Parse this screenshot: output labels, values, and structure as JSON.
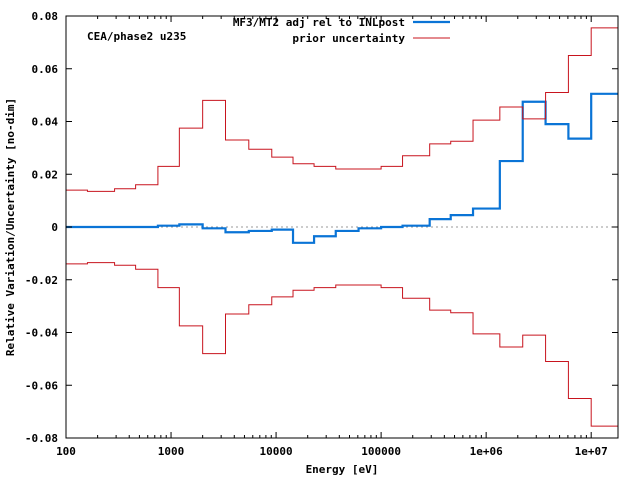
{
  "chart_data": {
    "type": "line",
    "step": true,
    "x_scale": "log",
    "xlim": [
      100,
      18000000
    ],
    "ylim": [
      -0.08,
      0.08
    ],
    "xlabel": "Energy [eV]",
    "ylabel": "Relative Variation/Uncertainty [no-dim]",
    "annotation": "CEA/phase2 u235",
    "legend_position": "top-right",
    "x_ticks": [
      {
        "value": 100,
        "label": "100"
      },
      {
        "value": 1000,
        "label": "1000"
      },
      {
        "value": 10000,
        "label": "10000"
      },
      {
        "value": 100000,
        "label": "100000"
      },
      {
        "value": 1000000,
        "label": "1e+06"
      },
      {
        "value": 10000000,
        "label": "1e+07"
      }
    ],
    "y_ticks": [
      {
        "value": 0.08,
        "label": "0.08"
      },
      {
        "value": 0.06,
        "label": "0.06"
      },
      {
        "value": 0.04,
        "label": "0.04"
      },
      {
        "value": 0.02,
        "label": "0.02"
      },
      {
        "value": 0,
        "label": "0"
      },
      {
        "value": -0.02,
        "label": "-0.02"
      },
      {
        "value": -0.04,
        "label": "-0.04"
      },
      {
        "value": -0.06,
        "label": "-0.06"
      },
      {
        "value": -0.08,
        "label": "-0.08"
      }
    ],
    "bin_edges": [
      100,
      160,
      290,
      460,
      750,
      1200,
      2000,
      3300,
      5500,
      9100,
      14500,
      23000,
      37000,
      61000,
      100000,
      160000,
      290000,
      460000,
      750000,
      1350000,
      2230000,
      3680000,
      6070000,
      10000000,
      18000000
    ],
    "series": [
      {
        "name": "MF3/MT2 adj rel to INLpost",
        "color": "#0a74d6",
        "values": [
          0,
          0,
          0,
          0,
          0.0005,
          0.001,
          -0.0005,
          -0.002,
          -0.0015,
          -0.001,
          -0.006,
          -0.0035,
          -0.0015,
          -0.0005,
          0,
          0.0005,
          0.003,
          0.0045,
          0.007,
          0.025,
          0.0475,
          0.039,
          0.0335,
          0.0505
        ]
      },
      {
        "name": "prior uncertainty",
        "color": "#c8141e",
        "values": [
          0.014,
          0.0135,
          0.0145,
          0.016,
          0.023,
          0.0375,
          0.048,
          0.033,
          0.0295,
          0.0265,
          0.024,
          0.023,
          0.022,
          0.022,
          0.023,
          0.027,
          0.0315,
          0.0325,
          0.0405,
          0.0455,
          0.041,
          0.051,
          0.065,
          0.0755
        ]
      },
      {
        "name": "prior uncertainty (negative)",
        "color": "#c8141e",
        "legend": false,
        "values": [
          -0.014,
          -0.0135,
          -0.0145,
          -0.016,
          -0.023,
          -0.0375,
          -0.048,
          -0.033,
          -0.0295,
          -0.0265,
          -0.024,
          -0.023,
          -0.022,
          -0.022,
          -0.023,
          -0.027,
          -0.0315,
          -0.0325,
          -0.0405,
          -0.0455,
          -0.041,
          -0.051,
          -0.065,
          -0.0755
        ]
      }
    ]
  }
}
